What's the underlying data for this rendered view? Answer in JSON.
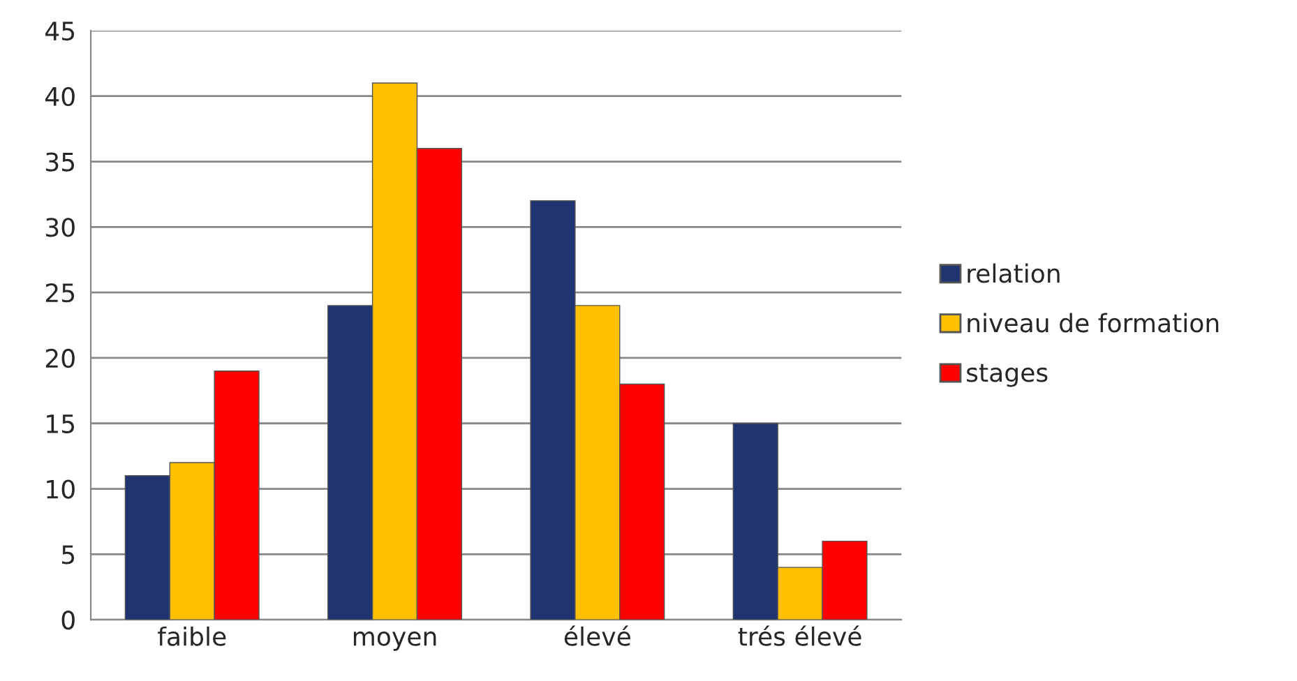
{
  "chart_data": {
    "type": "bar",
    "categories": [
      "faible",
      "moyen",
      "élevé",
      "trés élevé"
    ],
    "series": [
      {
        "name": "relation",
        "color": "#1f3470",
        "values": [
          11,
          24,
          32,
          15
        ]
      },
      {
        "name": "niveau de formation",
        "color": "#ffc000",
        "values": [
          12,
          41,
          24,
          4
        ]
      },
      {
        "name": "stages",
        "color": "#ff0000",
        "values": [
          19,
          36,
          18,
          6
        ]
      }
    ],
    "ylim": [
      0,
      45
    ],
    "yticks": [
      0,
      5,
      10,
      15,
      20,
      25,
      30,
      35,
      40,
      45
    ],
    "grid": "y",
    "legend": "right"
  }
}
